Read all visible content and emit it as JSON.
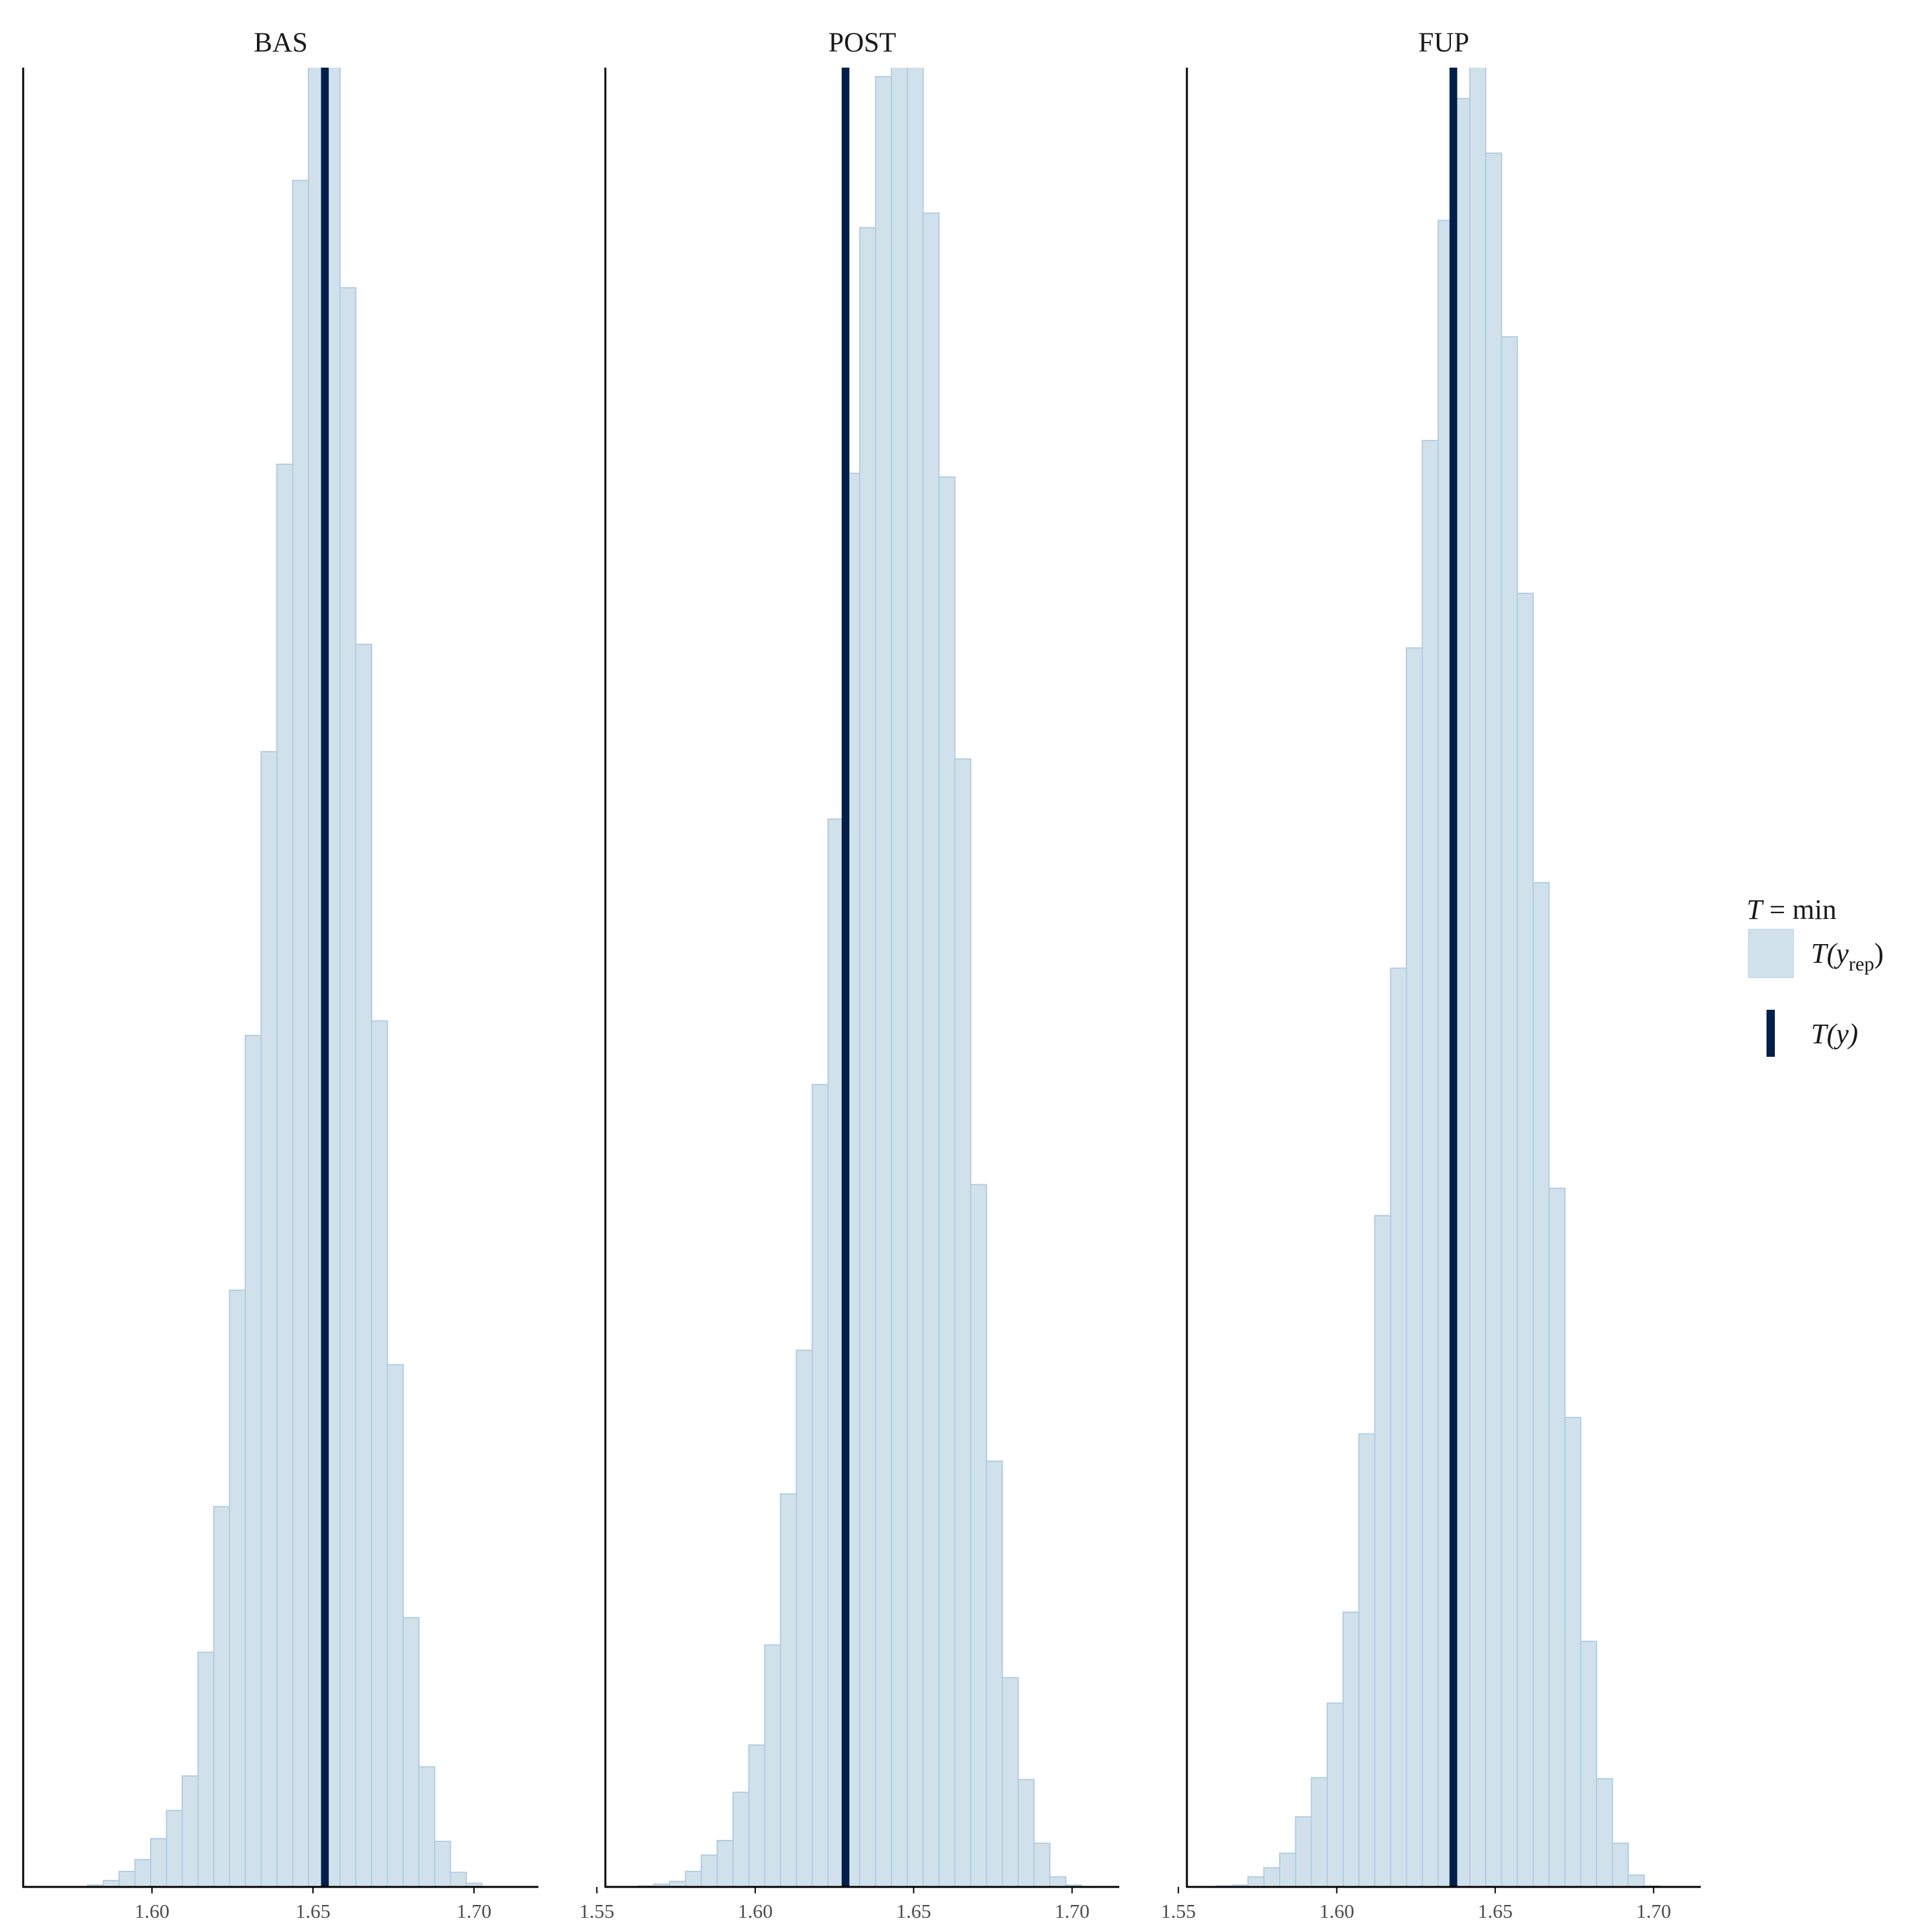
{
  "chart_data": [
    {
      "type": "bar",
      "title": "BAS",
      "xlim": [
        1.56,
        1.72
      ],
      "xticks": [
        1.6,
        1.65,
        1.7
      ],
      "xtick_labels": [
        "1.60",
        "1.65",
        "1.70"
      ],
      "bins": [
        1.58,
        1.5849,
        1.5898,
        1.5947,
        1.5996,
        1.6045,
        1.6094,
        1.6143,
        1.6192,
        1.6241,
        1.629,
        1.6339,
        1.6388,
        1.6437,
        1.6486,
        1.6535,
        1.6584,
        1.6633,
        1.6682,
        1.6731,
        1.678,
        1.6829,
        1.6878,
        1.6927,
        1.6976,
        1.7025
      ],
      "counts": [
        0.1,
        0.35,
        0.85,
        1.5,
        2.65,
        4.2,
        6.1,
        12.9,
        20.9,
        32.8,
        46.8,
        62.4,
        78.2,
        93.8,
        109.5,
        100.5,
        87.9,
        68.3,
        47.6,
        28.7,
        14.8,
        6.6,
        2.5,
        0.8,
        0.2
      ],
      "ylim": [
        0,
        100
      ],
      "observed": 1.6537
    },
    {
      "type": "bar",
      "title": "POST",
      "xlim": [
        1.5527,
        1.7149
      ],
      "xticks": [
        1.55,
        1.6,
        1.65,
        1.7
      ],
      "xtick_labels": [
        "1.55",
        "1.60",
        "1.65",
        "1.70"
      ],
      "bins": [
        1.563,
        1.568,
        1.573,
        1.578,
        1.583,
        1.588,
        1.593,
        1.598,
        1.603,
        1.608,
        1.613,
        1.618,
        1.623,
        1.628,
        1.633,
        1.638,
        1.643,
        1.648,
        1.653,
        1.658,
        1.663,
        1.668,
        1.673,
        1.678,
        1.683,
        1.688,
        1.693,
        1.698,
        1.703
      ],
      "counts": [
        0.05,
        0.15,
        0.3,
        0.85,
        1.75,
        2.55,
        5.2,
        7.8,
        13.3,
        21.6,
        29.5,
        44.1,
        58.7,
        77.7,
        91.2,
        99.5,
        103.2,
        110.3,
        92.0,
        77.5,
        62.0,
        38.6,
        23.4,
        11.5,
        5.9,
        2.4,
        0.55,
        0.1
      ],
      "ylim": [
        0,
        100
      ],
      "observed": 1.6285
    },
    {
      "type": "bar",
      "title": "FUP",
      "xlim": [
        1.5527,
        1.7149
      ],
      "xticks": [
        1.55,
        1.6,
        1.65,
        1.7
      ],
      "xtick_labels": [
        "1.55",
        "1.60",
        "1.65",
        "1.70"
      ],
      "bins": [
        1.562,
        1.567,
        1.572,
        1.577,
        1.582,
        1.587,
        1.592,
        1.597,
        1.602,
        1.607,
        1.612,
        1.617,
        1.622,
        1.627,
        1.632,
        1.637,
        1.642,
        1.647,
        1.652,
        1.657,
        1.662,
        1.667,
        1.672,
        1.677,
        1.682,
        1.687,
        1.692,
        1.697,
        1.702
      ],
      "counts": [
        0.05,
        0.1,
        0.55,
        1.05,
        1.85,
        3.85,
        6.0,
        10.1,
        15.1,
        24.9,
        36.9,
        50.5,
        68.1,
        79.5,
        91.6,
        98.3,
        100.2,
        95.3,
        85.2,
        71.1,
        55.2,
        38.4,
        25.8,
        13.5,
        5.95,
        2.4,
        0.65,
        0.05
      ],
      "ylim": [
        0,
        100
      ],
      "observed": 1.6368
    }
  ],
  "legend": {
    "title_var": "T",
    "title_rest": " = min",
    "rep_label_main": "T(y",
    "rep_label_sub": "rep",
    "rep_label_close": ")",
    "obs_label": "T(y)"
  },
  "colors": {
    "hist_fill": "#d1e1ec",
    "hist_edge": "#b3cde0",
    "observed_line": "#011f4b",
    "axis": "#000000"
  }
}
